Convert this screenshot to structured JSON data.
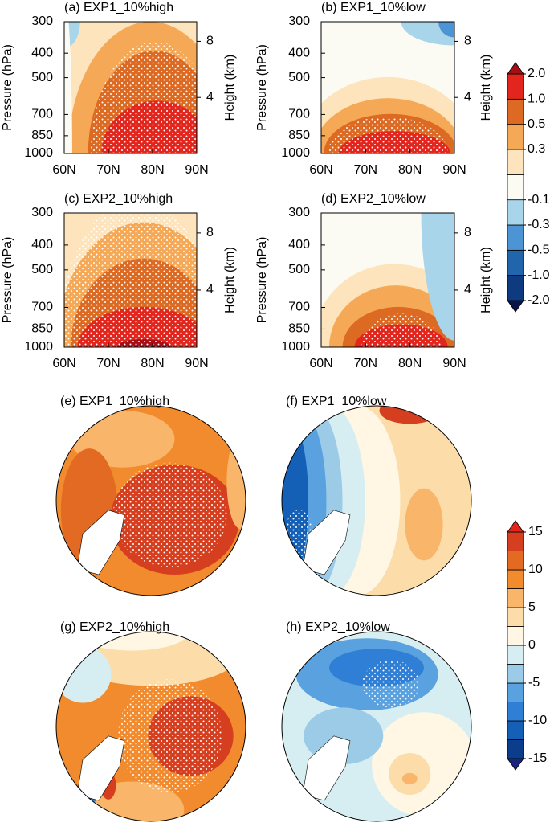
{
  "chart_data": [
    {
      "type": "cross-section",
      "title": "(a) EXP1_10%high",
      "ylabel": "Pressure (hPa)",
      "y2label": "Height (km)",
      "xlim": [
        60,
        90
      ],
      "xticks": [
        {
          "value": 60,
          "label": "60N"
        },
        {
          "value": 70,
          "label": "70N"
        },
        {
          "value": 80,
          "label": "80N"
        },
        {
          "value": 90,
          "label": "90N"
        }
      ],
      "ylim": [
        1000,
        300
      ],
      "yticks": [
        300,
        400,
        500,
        700,
        850,
        1000
      ],
      "ylog": true,
      "y2lim": [
        0,
        9.4
      ],
      "y2ticks": [
        4,
        8
      ]
    },
    {
      "type": "cross-section",
      "title": "(b) EXP1_10%low",
      "ylabel": "Pressure (hPa)",
      "y2label": "Height (km)",
      "xlim": [
        60,
        90
      ],
      "xticks": [
        {
          "value": 60,
          "label": "60N"
        },
        {
          "value": 70,
          "label": "70N"
        },
        {
          "value": 80,
          "label": "80N"
        },
        {
          "value": 90,
          "label": "90N"
        }
      ],
      "ylim": [
        1000,
        300
      ],
      "yticks": [
        300,
        400,
        500,
        700,
        850,
        1000
      ],
      "ylog": true,
      "y2lim": [
        0,
        9.4
      ],
      "y2ticks": [
        4,
        8
      ]
    },
    {
      "type": "cross-section",
      "title": "(c) EXP2_10%high",
      "ylabel": "Pressure (hPa)",
      "y2label": "Height (km)",
      "xlim": [
        60,
        90
      ],
      "xticks": [
        {
          "value": 60,
          "label": "60N"
        },
        {
          "value": 70,
          "label": "70N"
        },
        {
          "value": 80,
          "label": "80N"
        },
        {
          "value": 90,
          "label": "90N"
        }
      ],
      "ylim": [
        1000,
        300
      ],
      "yticks": [
        300,
        400,
        500,
        700,
        850,
        1000
      ],
      "ylog": true,
      "y2lim": [
        0,
        9.4
      ],
      "y2ticks": [
        4,
        8
      ]
    },
    {
      "type": "cross-section",
      "title": "(d) EXP2_10%low",
      "ylabel": "Pressure (hPa)",
      "y2label": "Height (km)",
      "xlim": [
        60,
        90
      ],
      "xticks": [
        {
          "value": 60,
          "label": "60N"
        },
        {
          "value": 70,
          "label": "70N"
        },
        {
          "value": 80,
          "label": "80N"
        },
        {
          "value": 90,
          "label": "90N"
        }
      ],
      "ylim": [
        1000,
        300
      ],
      "yticks": [
        300,
        400,
        500,
        700,
        850,
        1000
      ],
      "ylog": true,
      "y2lim": [
        0,
        9.4
      ],
      "y2ticks": [
        4,
        8
      ]
    },
    {
      "type": "colorbar",
      "ticks": [
        {
          "value": -2,
          "label": "-2.0"
        },
        {
          "value": -1,
          "label": "-1.0"
        },
        -0.5,
        -0.3,
        -0.1,
        null,
        0.3,
        0.5,
        {
          "value": 1,
          "label": "1.0"
        },
        {
          "value": 2,
          "label": "2.0"
        }
      ],
      "colors": [
        "#0a1446",
        "#0e3a80",
        "#2166ac",
        "#4d94d4",
        "#a8d5ea",
        "#fbfbf4",
        "#fde4bd",
        "#f5a957",
        "#dd6a22",
        "#e3261d",
        "#a50f15"
      ]
    },
    {
      "type": "polar-map",
      "title": "(e) EXP1_10%high"
    },
    {
      "type": "polar-map",
      "title": "(f) EXP1_10%low"
    },
    {
      "type": "polar-map",
      "title": "(g) EXP2_10%high"
    },
    {
      "type": "polar-map",
      "title": "(h) EXP2_10%low"
    },
    {
      "type": "colorbar",
      "ylim": [
        -15,
        15
      ],
      "yticks": [
        -15,
        -10,
        -5,
        0,
        5,
        10,
        15
      ],
      "colors": [
        "#1a237e",
        "#0b3d8c",
        "#1460b6",
        "#2f7fd6",
        "#5aa1e0",
        "#9ccbe8",
        "#d6eef2",
        "#fff6e4",
        "#fcdca8",
        "#f9b66a",
        "#f28b2e",
        "#e36a22",
        "#d53f1f",
        "#e3241b"
      ]
    }
  ]
}
